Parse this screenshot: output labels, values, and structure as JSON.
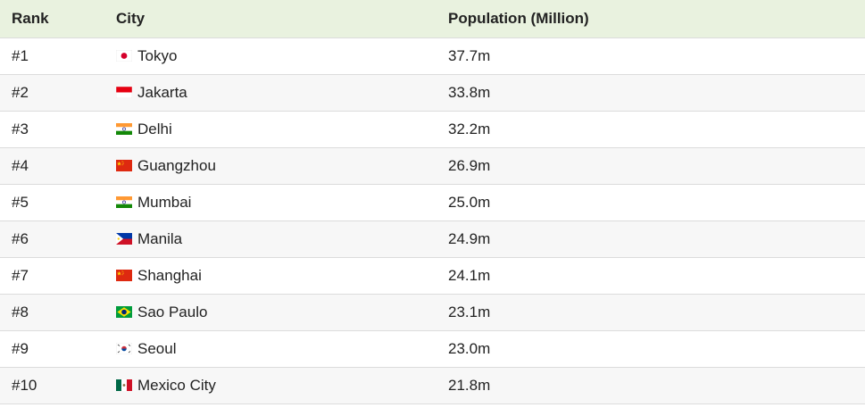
{
  "table": {
    "headers": {
      "rank": "Rank",
      "city": "City",
      "population": "Population (Million)"
    },
    "rows": [
      {
        "rank": "#1",
        "city": "Tokyo",
        "population": "37.7m",
        "flag": "japan-flag-icon"
      },
      {
        "rank": "#2",
        "city": "Jakarta",
        "population": "33.8m",
        "flag": "indonesia-flag-icon"
      },
      {
        "rank": "#3",
        "city": "Delhi",
        "population": "32.2m",
        "flag": "india-flag-icon"
      },
      {
        "rank": "#4",
        "city": "Guangzhou",
        "population": "26.9m",
        "flag": "china-flag-icon"
      },
      {
        "rank": "#5",
        "city": "Mumbai",
        "population": "25.0m",
        "flag": "india-flag-icon"
      },
      {
        "rank": "#6",
        "city": "Manila",
        "population": "24.9m",
        "flag": "philippines-flag-icon"
      },
      {
        "rank": "#7",
        "city": "Shanghai",
        "population": "24.1m",
        "flag": "china-flag-icon"
      },
      {
        "rank": "#8",
        "city": "Sao Paulo",
        "population": "23.1m",
        "flag": "brazil-flag-icon"
      },
      {
        "rank": "#9",
        "city": "Seoul",
        "population": "23.0m",
        "flag": "south-korea-flag-icon"
      },
      {
        "rank": "#10",
        "city": "Mexico City",
        "population": "21.8m",
        "flag": "mexico-flag-icon"
      }
    ]
  },
  "colors": {
    "header_bg": "#e9f2df",
    "row_alt_bg": "#f7f7f7",
    "border": "#dcdcdc",
    "text": "#222222"
  }
}
